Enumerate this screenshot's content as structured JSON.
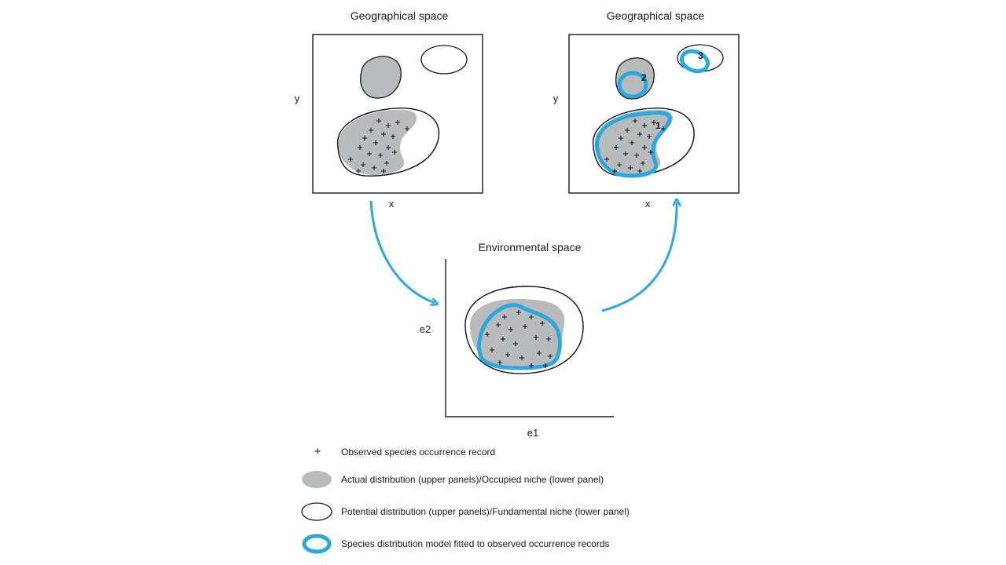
{
  "colors": {
    "gray_fill": "#b9babc",
    "model_blue": "#29a9e1",
    "outline": "#1a1a1a",
    "background": "#ffffff"
  },
  "panels": {
    "left": {
      "title": "Geographical space",
      "x_label": "x",
      "y_label": "y"
    },
    "right": {
      "title": "Geographical space",
      "x_label": "x",
      "y_label": "y",
      "region_labels": [
        "1",
        "2",
        "3"
      ]
    },
    "bottom": {
      "title": "Environmental space",
      "x_label": "e1",
      "y_label": "e2"
    }
  },
  "legend": {
    "occurrence": {
      "symbol": "+",
      "text": "Observed species occurrence record"
    },
    "actual": {
      "text": "Actual distribution (upper panels)/Occupied niche (lower panel)"
    },
    "potential": {
      "text": "Potential distribution (upper panels)/Fundamental niche (lower panel)"
    },
    "model": {
      "text": "Species distribution model fitted to observed occurrence records"
    }
  }
}
